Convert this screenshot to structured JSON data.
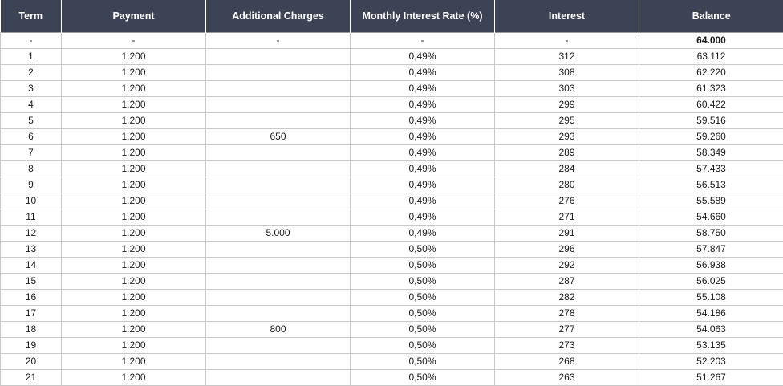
{
  "headers": [
    "Term",
    "Payment",
    "Additional Charges",
    "Monthly Interest Rate (%)",
    "Interest",
    "Balance"
  ],
  "rows": [
    [
      "-",
      "-",
      "-",
      "-",
      "-",
      "64.000"
    ],
    [
      "1",
      "1.200",
      "",
      "0,49%",
      "312",
      "63.112"
    ],
    [
      "2",
      "1.200",
      "",
      "0,49%",
      "308",
      "62.220"
    ],
    [
      "3",
      "1.200",
      "",
      "0,49%",
      "303",
      "61.323"
    ],
    [
      "4",
      "1.200",
      "",
      "0,49%",
      "299",
      "60.422"
    ],
    [
      "5",
      "1.200",
      "",
      "0,49%",
      "295",
      "59.516"
    ],
    [
      "6",
      "1.200",
      "650",
      "0,49%",
      "293",
      "59.260"
    ],
    [
      "7",
      "1.200",
      "",
      "0,49%",
      "289",
      "58.349"
    ],
    [
      "8",
      "1.200",
      "",
      "0,49%",
      "284",
      "57.433"
    ],
    [
      "9",
      "1.200",
      "",
      "0,49%",
      "280",
      "56.513"
    ],
    [
      "10",
      "1.200",
      "",
      "0,49%",
      "276",
      "55.589"
    ],
    [
      "11",
      "1.200",
      "",
      "0,49%",
      "271",
      "54.660"
    ],
    [
      "12",
      "1.200",
      "5.000",
      "0,49%",
      "291",
      "58.750"
    ],
    [
      "13",
      "1.200",
      "",
      "0,50%",
      "296",
      "57.847"
    ],
    [
      "14",
      "1.200",
      "",
      "0,50%",
      "292",
      "56.938"
    ],
    [
      "15",
      "1.200",
      "",
      "0,50%",
      "287",
      "56.025"
    ],
    [
      "16",
      "1.200",
      "",
      "0,50%",
      "282",
      "55.108"
    ],
    [
      "17",
      "1.200",
      "",
      "0,50%",
      "278",
      "54.186"
    ],
    [
      "18",
      "1.200",
      "800",
      "0,50%",
      "277",
      "54.063"
    ],
    [
      "19",
      "1.200",
      "",
      "0,50%",
      "273",
      "53.135"
    ],
    [
      "20",
      "1.200",
      "",
      "0,50%",
      "268",
      "52.203"
    ],
    [
      "21",
      "1.200",
      "",
      "0,50%",
      "263",
      "51.267"
    ]
  ]
}
